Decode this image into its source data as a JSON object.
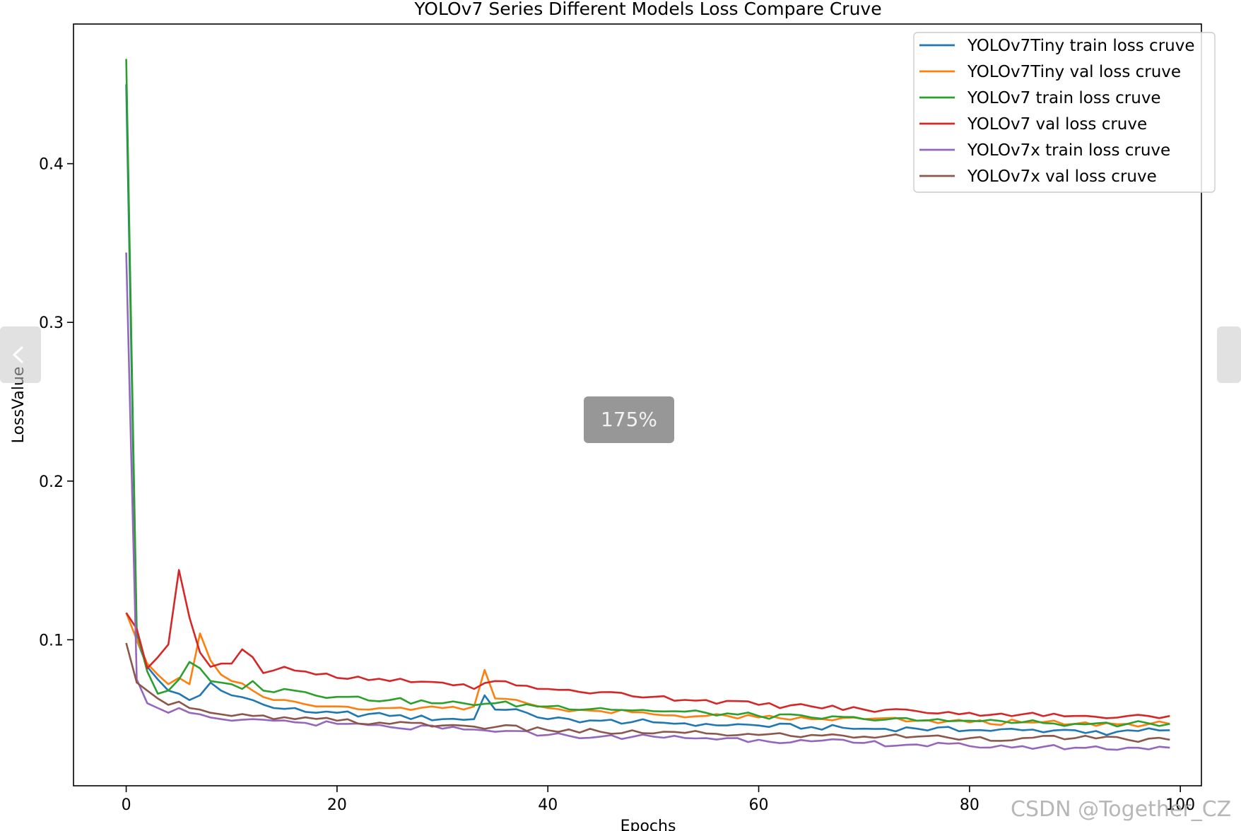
{
  "viewer": {
    "zoom_label": "175%",
    "watermark": "CSDN @Together_CZ"
  },
  "chart_data": {
    "type": "line",
    "title": "YOLOv7 Series Different Models Loss Compare Cruve",
    "xlabel": "Epochs",
    "ylabel": "LossValue",
    "xlim": [
      -5,
      102
    ],
    "ylim": [
      0.008,
      0.488
    ],
    "xticks": [
      0,
      20,
      40,
      60,
      80,
      100
    ],
    "yticks": [
      0.1,
      0.2,
      0.3,
      0.4
    ],
    "grid": false,
    "legend_position": "upper right",
    "series": [
      {
        "name": "YOLOv7Tiny train loss cruve",
        "color": "#1f77b4",
        "keypoints": [
          [
            0,
            0.45
          ],
          [
            1,
            0.1
          ],
          [
            2,
            0.083
          ],
          [
            3,
            0.075
          ],
          [
            4,
            0.068
          ],
          [
            5,
            0.066
          ],
          [
            6,
            0.062
          ],
          [
            7,
            0.065
          ],
          [
            8,
            0.073
          ],
          [
            9,
            0.068
          ],
          [
            10,
            0.065
          ],
          [
            12,
            0.062
          ],
          [
            14,
            0.057
          ],
          [
            16,
            0.057
          ],
          [
            18,
            0.054
          ],
          [
            20,
            0.054
          ],
          [
            25,
            0.052
          ],
          [
            30,
            0.05
          ],
          [
            33,
            0.05
          ],
          [
            34,
            0.065
          ],
          [
            35,
            0.056
          ],
          [
            38,
            0.054
          ],
          [
            40,
            0.05
          ],
          [
            45,
            0.049
          ],
          [
            50,
            0.048
          ],
          [
            55,
            0.047
          ],
          [
            60,
            0.046
          ],
          [
            65,
            0.045
          ],
          [
            70,
            0.044
          ],
          [
            75,
            0.044
          ],
          [
            80,
            0.043
          ],
          [
            85,
            0.043
          ],
          [
            90,
            0.043
          ],
          [
            93,
            0.04
          ],
          [
            95,
            0.043
          ],
          [
            99,
            0.043
          ]
        ]
      },
      {
        "name": "YOLOv7Tiny val loss cruve",
        "color": "#ff7f0e",
        "keypoints": [
          [
            0,
            0.117
          ],
          [
            1,
            0.1
          ],
          [
            2,
            0.085
          ],
          [
            3,
            0.078
          ],
          [
            4,
            0.072
          ],
          [
            5,
            0.076
          ],
          [
            6,
            0.072
          ],
          [
            7,
            0.104
          ],
          [
            8,
            0.087
          ],
          [
            9,
            0.078
          ],
          [
            10,
            0.074
          ],
          [
            12,
            0.068
          ],
          [
            14,
            0.062
          ],
          [
            16,
            0.061
          ],
          [
            18,
            0.058
          ],
          [
            20,
            0.058
          ],
          [
            25,
            0.057
          ],
          [
            30,
            0.057
          ],
          [
            33,
            0.058
          ],
          [
            34,
            0.081
          ],
          [
            35,
            0.063
          ],
          [
            38,
            0.06
          ],
          [
            40,
            0.057
          ],
          [
            45,
            0.055
          ],
          [
            50,
            0.053
          ],
          [
            55,
            0.052
          ],
          [
            60,
            0.051
          ],
          [
            65,
            0.05
          ],
          [
            70,
            0.05
          ],
          [
            75,
            0.049
          ],
          [
            80,
            0.048
          ],
          [
            85,
            0.048
          ],
          [
            90,
            0.047
          ],
          [
            95,
            0.047
          ],
          [
            99,
            0.047
          ]
        ]
      },
      {
        "name": "YOLOv7 train loss cruve",
        "color": "#2ca02c",
        "keypoints": [
          [
            0,
            0.466
          ],
          [
            1,
            0.105
          ],
          [
            2,
            0.08
          ],
          [
            3,
            0.066
          ],
          [
            4,
            0.068
          ],
          [
            5,
            0.075
          ],
          [
            6,
            0.086
          ],
          [
            7,
            0.082
          ],
          [
            8,
            0.074
          ],
          [
            9,
            0.073
          ],
          [
            10,
            0.072
          ],
          [
            11,
            0.069
          ],
          [
            12,
            0.074
          ],
          [
            13,
            0.068
          ],
          [
            15,
            0.069
          ],
          [
            17,
            0.067
          ],
          [
            20,
            0.064
          ],
          [
            25,
            0.062
          ],
          [
            30,
            0.06
          ],
          [
            35,
            0.06
          ],
          [
            40,
            0.058
          ],
          [
            45,
            0.057
          ],
          [
            50,
            0.055
          ],
          [
            55,
            0.054
          ],
          [
            60,
            0.052
          ],
          [
            65,
            0.051
          ],
          [
            70,
            0.05
          ],
          [
            75,
            0.049
          ],
          [
            80,
            0.049
          ],
          [
            85,
            0.048
          ],
          [
            90,
            0.047
          ],
          [
            95,
            0.047
          ],
          [
            99,
            0.047
          ]
        ]
      },
      {
        "name": "YOLOv7 val loss cruve",
        "color": "#d62728",
        "keypoints": [
          [
            0,
            0.117
          ],
          [
            1,
            0.107
          ],
          [
            2,
            0.082
          ],
          [
            3,
            0.089
          ],
          [
            4,
            0.097
          ],
          [
            5,
            0.144
          ],
          [
            6,
            0.114
          ],
          [
            7,
            0.092
          ],
          [
            8,
            0.083
          ],
          [
            9,
            0.085
          ],
          [
            10,
            0.085
          ],
          [
            11,
            0.094
          ],
          [
            12,
            0.089
          ],
          [
            13,
            0.079
          ],
          [
            15,
            0.083
          ],
          [
            17,
            0.08
          ],
          [
            20,
            0.076
          ],
          [
            25,
            0.074
          ],
          [
            30,
            0.073
          ],
          [
            33,
            0.069
          ],
          [
            35,
            0.074
          ],
          [
            38,
            0.071
          ],
          [
            40,
            0.069
          ],
          [
            45,
            0.067
          ],
          [
            50,
            0.064
          ],
          [
            55,
            0.062
          ],
          [
            60,
            0.059
          ],
          [
            65,
            0.058
          ],
          [
            70,
            0.056
          ],
          [
            75,
            0.055
          ],
          [
            80,
            0.054
          ],
          [
            85,
            0.053
          ],
          [
            90,
            0.052
          ],
          [
            95,
            0.052
          ],
          [
            99,
            0.052
          ]
        ]
      },
      {
        "name": "YOLOv7x train loss cruve",
        "color": "#9467bd",
        "keypoints": [
          [
            0,
            0.344
          ],
          [
            1,
            0.075
          ],
          [
            2,
            0.06
          ],
          [
            3,
            0.057
          ],
          [
            4,
            0.054
          ],
          [
            5,
            0.057
          ],
          [
            6,
            0.054
          ],
          [
            7,
            0.053
          ],
          [
            8,
            0.051
          ],
          [
            10,
            0.049
          ],
          [
            12,
            0.05
          ],
          [
            14,
            0.049
          ],
          [
            16,
            0.048
          ],
          [
            20,
            0.047
          ],
          [
            25,
            0.045
          ],
          [
            30,
            0.044
          ],
          [
            35,
            0.042
          ],
          [
            40,
            0.04
          ],
          [
            45,
            0.039
          ],
          [
            50,
            0.039
          ],
          [
            55,
            0.038
          ],
          [
            60,
            0.037
          ],
          [
            65,
            0.036
          ],
          [
            70,
            0.035
          ],
          [
            75,
            0.034
          ],
          [
            80,
            0.033
          ],
          [
            85,
            0.033
          ],
          [
            90,
            0.032
          ],
          [
            95,
            0.032
          ],
          [
            99,
            0.032
          ]
        ]
      },
      {
        "name": "YOLOv7x val loss cruve",
        "color": "#8c564b",
        "keypoints": [
          [
            0,
            0.098
          ],
          [
            1,
            0.073
          ],
          [
            2,
            0.068
          ],
          [
            3,
            0.063
          ],
          [
            4,
            0.059
          ],
          [
            5,
            0.061
          ],
          [
            6,
            0.057
          ],
          [
            7,
            0.056
          ],
          [
            8,
            0.054
          ],
          [
            10,
            0.052
          ],
          [
            12,
            0.052
          ],
          [
            14,
            0.05
          ],
          [
            16,
            0.05
          ],
          [
            20,
            0.049
          ],
          [
            25,
            0.047
          ],
          [
            30,
            0.046
          ],
          [
            35,
            0.045
          ],
          [
            40,
            0.043
          ],
          [
            45,
            0.042
          ],
          [
            50,
            0.041
          ],
          [
            55,
            0.041
          ],
          [
            60,
            0.04
          ],
          [
            65,
            0.04
          ],
          [
            70,
            0.039
          ],
          [
            75,
            0.039
          ],
          [
            80,
            0.038
          ],
          [
            85,
            0.038
          ],
          [
            90,
            0.038
          ],
          [
            95,
            0.037
          ],
          [
            99,
            0.037
          ]
        ]
      }
    ]
  }
}
